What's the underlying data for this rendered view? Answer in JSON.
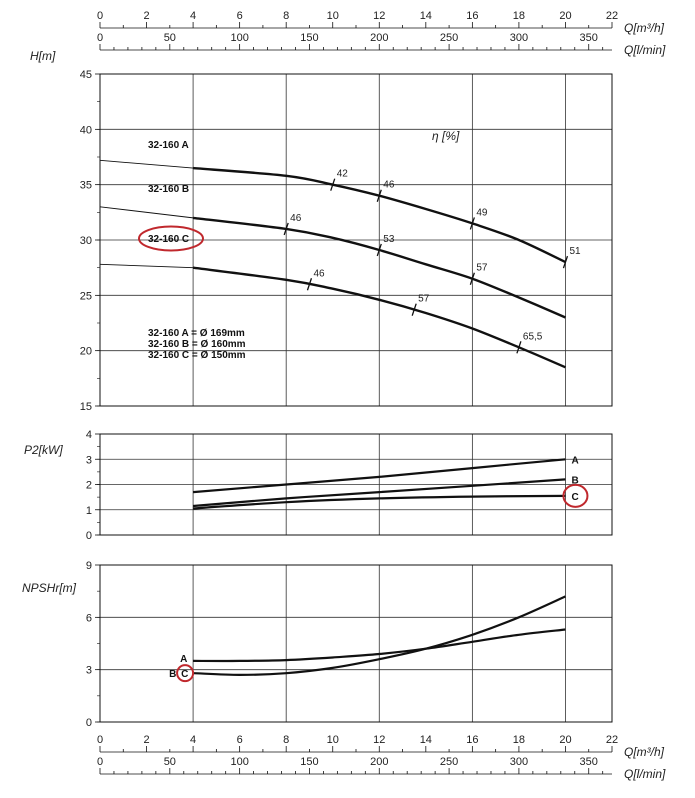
{
  "chart_data": [
    {
      "type": "line",
      "panel": "head",
      "ylabel": "H[m]",
      "xlabel_top": [
        "Q[m³/h]",
        "Q[l/min]"
      ],
      "xlim": [
        0,
        22
      ],
      "ylim": [
        15,
        45
      ],
      "yticks": [
        15,
        20,
        25,
        30,
        35,
        40,
        45
      ],
      "top_axis_m3h_ticks": [
        0,
        2,
        4,
        6,
        8,
        10,
        12,
        14,
        16,
        18,
        20,
        22
      ],
      "top_axis_lmin_ticks": [
        0,
        50,
        100,
        150,
        200,
        250,
        300,
        350
      ],
      "grid": true,
      "series": [
        {
          "name": "32-160 A",
          "x": [
            0,
            4,
            8,
            10,
            12,
            14,
            16,
            18,
            20
          ],
          "y": [
            37.2,
            36.5,
            35.8,
            35.0,
            34.0,
            32.8,
            31.5,
            30.0,
            28.0
          ]
        },
        {
          "name": "32-160 B",
          "x": [
            0,
            4,
            8,
            10,
            12,
            14,
            16,
            18,
            20
          ],
          "y": [
            33.0,
            32.0,
            31.0,
            30.2,
            29.1,
            27.8,
            26.5,
            24.8,
            23.0
          ]
        },
        {
          "name": "32-160 C",
          "x": [
            0,
            4,
            8,
            10,
            12,
            14,
            16,
            18,
            20
          ],
          "y": [
            27.8,
            27.5,
            26.4,
            25.6,
            24.6,
            23.4,
            22.0,
            20.3,
            18.5
          ]
        }
      ],
      "efficiency_label": "η [%]",
      "efficiency_marks": [
        {
          "curve": "32-160 A",
          "x": 10.0,
          "label": "42"
        },
        {
          "curve": "32-160 A",
          "x": 12.0,
          "label": "46"
        },
        {
          "curve": "32-160 A",
          "x": 16.0,
          "label": "49"
        },
        {
          "curve": "32-160 A",
          "x": 20.0,
          "label": "51"
        },
        {
          "curve": "32-160 B",
          "x": 8.0,
          "label": "46"
        },
        {
          "curve": "32-160 B",
          "x": 12.0,
          "label": "53"
        },
        {
          "curve": "32-160 B",
          "x": 16.0,
          "label": "57"
        },
        {
          "curve": "32-160 C",
          "x": 9.0,
          "label": "46"
        },
        {
          "curve": "32-160 C",
          "x": 13.5,
          "label": "57"
        },
        {
          "curve": "32-160 C",
          "x": 18.0,
          "label": "65,5"
        }
      ],
      "annotations": [
        "32-160 A = Ø 169mm",
        "32-160 B = Ø 160mm",
        "32-160 C = Ø 150mm"
      ]
    },
    {
      "type": "line",
      "panel": "power",
      "ylabel": "P2[kW]",
      "xlim": [
        0,
        22
      ],
      "ylim": [
        0,
        4
      ],
      "yticks": [
        0,
        1,
        2,
        3,
        4
      ],
      "grid": true,
      "series": [
        {
          "name": "A",
          "x": [
            4,
            8,
            12,
            16,
            20
          ],
          "y": [
            1.7,
            2.0,
            2.3,
            2.65,
            3.0
          ]
        },
        {
          "name": "B",
          "x": [
            4,
            8,
            12,
            16,
            20
          ],
          "y": [
            1.15,
            1.45,
            1.7,
            1.95,
            2.2
          ]
        },
        {
          "name": "C",
          "x": [
            4,
            8,
            12,
            16,
            20
          ],
          "y": [
            1.05,
            1.3,
            1.45,
            1.52,
            1.55
          ]
        }
      ]
    },
    {
      "type": "line",
      "panel": "npsh",
      "ylabel": "NPSHr[m]",
      "xlim": [
        0,
        22
      ],
      "ylim": [
        0,
        9
      ],
      "yticks": [
        0,
        3,
        6,
        9
      ],
      "grid": true,
      "series": [
        {
          "name": "A",
          "x": [
            4,
            6,
            8,
            10,
            12,
            14,
            16,
            18,
            20
          ],
          "y": [
            3.5,
            3.5,
            3.55,
            3.7,
            3.9,
            4.2,
            4.6,
            5.0,
            5.3
          ]
        },
        {
          "name": "B-C",
          "x": [
            4,
            6,
            8,
            10,
            12,
            14,
            16,
            18,
            20
          ],
          "y": [
            2.8,
            2.7,
            2.8,
            3.1,
            3.6,
            4.2,
            5.0,
            6.0,
            7.2
          ]
        }
      ],
      "bottom_axis_m3h_ticks": [
        0,
        2,
        4,
        6,
        8,
        10,
        12,
        14,
        16,
        18,
        20,
        22
      ],
      "bottom_axis_lmin_ticks": [
        0,
        50,
        100,
        150,
        200,
        250,
        300,
        350
      ],
      "xlabel_bottom": [
        "Q[m³/h]",
        "Q[l/min]"
      ]
    }
  ],
  "labels": {
    "head_curve_labels": [
      "32-160 A",
      "32-160 B",
      "32-160 C"
    ],
    "power_curve_labels": [
      "A",
      "B",
      "C"
    ],
    "npsh_curve_labels": [
      "A",
      "B",
      "C"
    ]
  },
  "colors": {
    "line": "#111111",
    "grid": "#333333",
    "highlight": "#c0282d"
  }
}
